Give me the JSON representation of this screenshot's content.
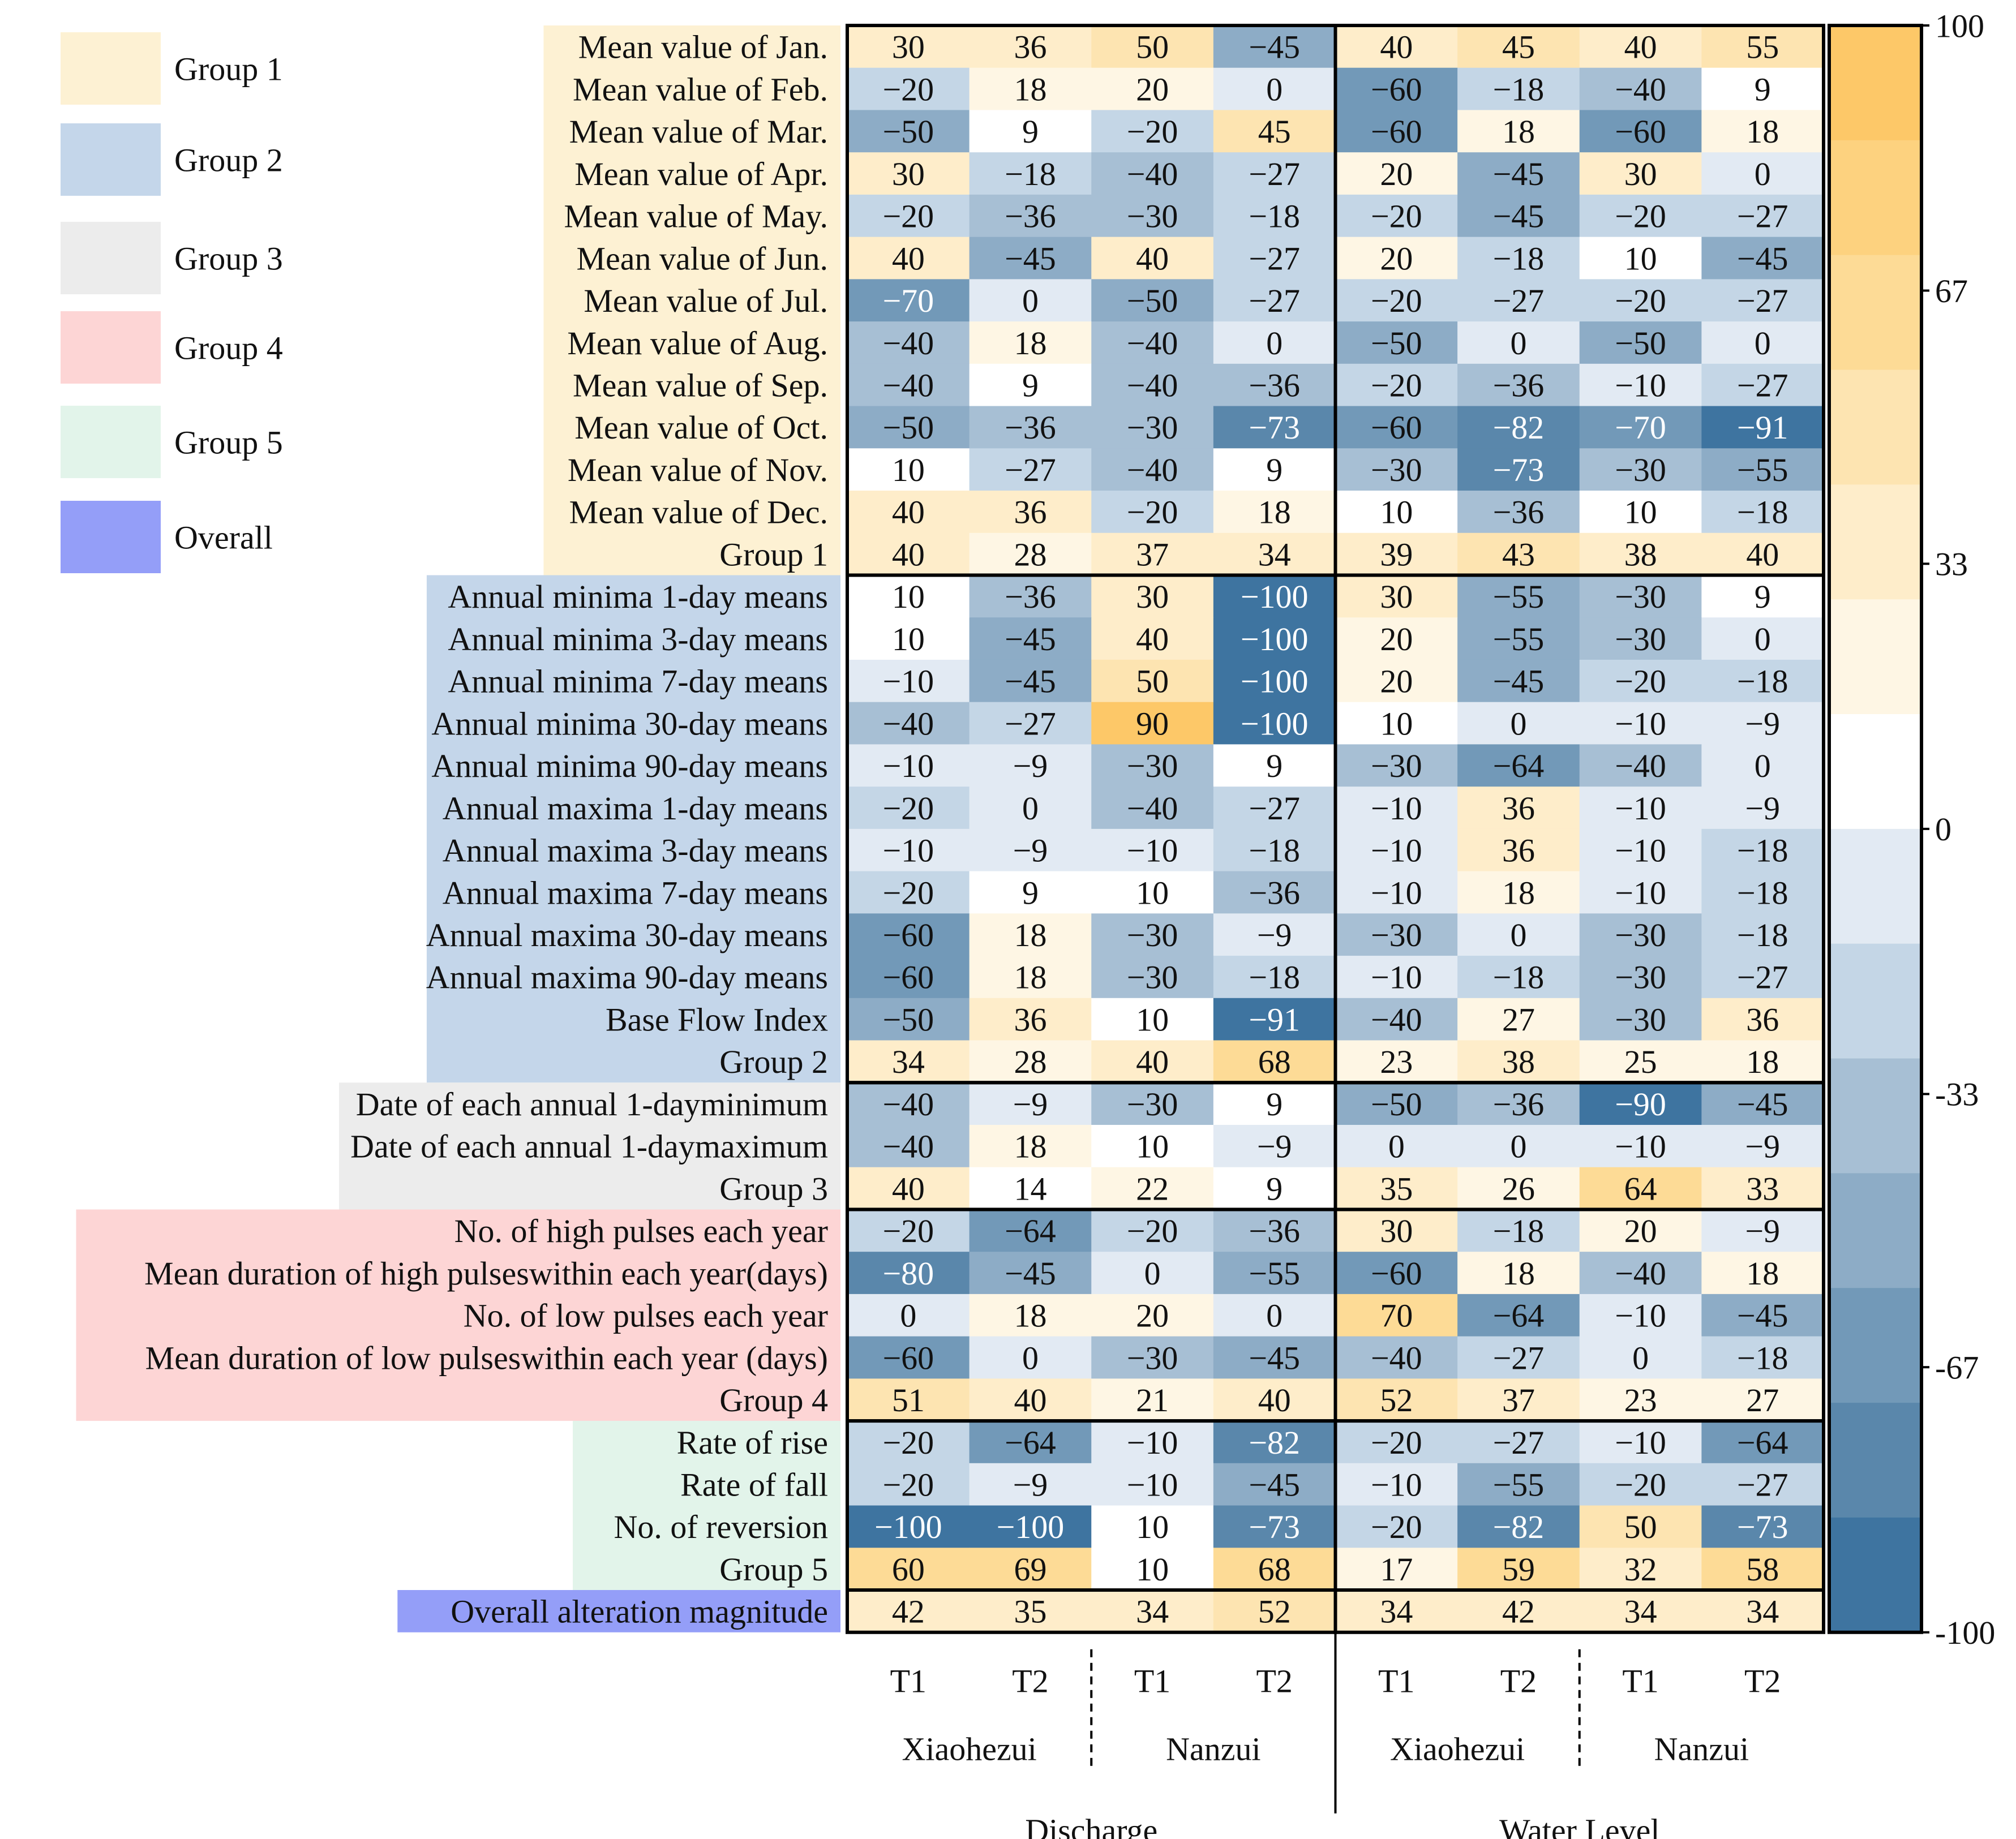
{
  "chart_data": {
    "type": "heatmap",
    "columns": [
      {
        "variable": "Discharge",
        "station": "Xiaohezui",
        "period": "T1"
      },
      {
        "variable": "Discharge",
        "station": "Xiaohezui",
        "period": "T2"
      },
      {
        "variable": "Discharge",
        "station": "Nanzui",
        "period": "T1"
      },
      {
        "variable": "Discharge",
        "station": "Nanzui",
        "period": "T2"
      },
      {
        "variable": "Water Level",
        "station": "Xiaohezui",
        "period": "T1"
      },
      {
        "variable": "Water Level",
        "station": "Xiaohezui",
        "period": "T2"
      },
      {
        "variable": "Water Level",
        "station": "Nanzui",
        "period": "T1"
      },
      {
        "variable": "Water Level",
        "station": "Nanzui",
        "period": "T2"
      }
    ],
    "period_labels": [
      "T1",
      "T2",
      "T1",
      "T2",
      "T1",
      "T2",
      "T1",
      "T2"
    ],
    "station_labels": [
      "Xiaohezui",
      "Nanzui",
      "Xiaohezui",
      "Nanzui"
    ],
    "variable_labels": [
      "Discharge",
      "Water Level"
    ],
    "groups": [
      {
        "name": "Group 1",
        "color": "#fdf1d3",
        "rows": [
          {
            "label": "Mean value of Jan.",
            "values": [
              30,
              36,
              50,
              -45,
              40,
              45,
              40,
              55
            ]
          },
          {
            "label": "Mean value of Feb.",
            "values": [
              -20,
              18,
              20,
              0,
              -60,
              -18,
              -40,
              9
            ]
          },
          {
            "label": "Mean value of Mar.",
            "values": [
              -50,
              9,
              -20,
              45,
              -60,
              18,
              -60,
              18
            ]
          },
          {
            "label": "Mean value of Apr.",
            "values": [
              30,
              -18,
              -40,
              -27,
              20,
              -45,
              30,
              0
            ]
          },
          {
            "label": "Mean value of May.",
            "values": [
              -20,
              -36,
              -30,
              -18,
              -20,
              -45,
              -20,
              -27
            ]
          },
          {
            "label": "Mean value of Jun.",
            "values": [
              40,
              -45,
              40,
              -27,
              20,
              -18,
              10,
              -45
            ]
          },
          {
            "label": "Mean value of Jul.",
            "values": [
              -70,
              0,
              -50,
              -27,
              -20,
              -27,
              -20,
              -27
            ]
          },
          {
            "label": "Mean value of Aug.",
            "values": [
              -40,
              18,
              -40,
              0,
              -50,
              0,
              -50,
              0
            ]
          },
          {
            "label": "Mean value of Sep.",
            "values": [
              -40,
              9,
              -40,
              -36,
              -20,
              -36,
              -10,
              -27
            ]
          },
          {
            "label": "Mean value of Oct.",
            "values": [
              -50,
              -36,
              -30,
              -73,
              -60,
              -82,
              -70,
              -91
            ]
          },
          {
            "label": "Mean value of Nov.",
            "values": [
              10,
              -27,
              -40,
              9,
              -30,
              -73,
              -30,
              -55
            ]
          },
          {
            "label": "Mean value of Dec.",
            "values": [
              40,
              36,
              -20,
              18,
              10,
              -36,
              10,
              -18
            ]
          },
          {
            "label": "Group 1",
            "values": [
              40,
              28,
              37,
              34,
              39,
              43,
              38,
              40
            ]
          }
        ]
      },
      {
        "name": "Group 2",
        "color": "#c4d6ea",
        "rows": [
          {
            "label": "Annual minima 1-day means",
            "values": [
              10,
              -36,
              30,
              -100,
              30,
              -55,
              -30,
              9
            ]
          },
          {
            "label": "Annual minima 3-day means",
            "values": [
              10,
              -45,
              40,
              -100,
              20,
              -55,
              -30,
              0
            ]
          },
          {
            "label": "Annual minima 7-day means",
            "values": [
              -10,
              -45,
              50,
              -100,
              20,
              -45,
              -20,
              -18
            ]
          },
          {
            "label": "Annual minima 30-day means",
            "values": [
              -40,
              -27,
              90,
              -100,
              10,
              0,
              -10,
              -9
            ]
          },
          {
            "label": "Annual minima 90-day means",
            "values": [
              -10,
              -9,
              -30,
              9,
              -30,
              -64,
              -40,
              0
            ]
          },
          {
            "label": "Annual maxima 1-day means",
            "values": [
              -20,
              0,
              -40,
              -27,
              -10,
              36,
              -10,
              -9
            ]
          },
          {
            "label": "Annual maxima 3-day means",
            "values": [
              -10,
              -9,
              -10,
              -18,
              -10,
              36,
              -10,
              -18
            ]
          },
          {
            "label": "Annual maxima 7-day means",
            "values": [
              -20,
              9,
              10,
              -36,
              -10,
              18,
              -10,
              -18
            ]
          },
          {
            "label": "Annual maxima 30-day means",
            "values": [
              -60,
              18,
              -30,
              -9,
              -30,
              0,
              -30,
              -18
            ]
          },
          {
            "label": "Annual maxima 90-day means",
            "values": [
              -60,
              18,
              -30,
              -18,
              -10,
              -18,
              -30,
              -27
            ]
          },
          {
            "label": "Base Flow Index",
            "values": [
              -50,
              36,
              10,
              -91,
              -40,
              27,
              -30,
              36
            ]
          },
          {
            "label": "Group 2",
            "values": [
              34,
              28,
              40,
              68,
              23,
              38,
              25,
              18
            ]
          }
        ]
      },
      {
        "name": "Group 3",
        "color": "#ececec",
        "rows": [
          {
            "label": "Date of each annual 1-dayminimum",
            "values": [
              -40,
              -9,
              -30,
              9,
              -50,
              -36,
              -90,
              -45
            ]
          },
          {
            "label": "Date of each annual 1-daymaximum",
            "values": [
              -40,
              18,
              10,
              -9,
              0,
              0,
              -10,
              -9
            ]
          },
          {
            "label": "Group 3",
            "values": [
              40,
              14,
              22,
              9,
              35,
              26,
              64,
              33
            ]
          }
        ]
      },
      {
        "name": "Group 4",
        "color": "#fdd5d5",
        "rows": [
          {
            "label": "No. of high pulses each year",
            "values": [
              -20,
              -64,
              -20,
              -36,
              30,
              -18,
              20,
              -9
            ]
          },
          {
            "label": "Mean duration of high pulseswithin each year(days)",
            "values": [
              -80,
              -45,
              0,
              -55,
              -60,
              18,
              -40,
              18
            ]
          },
          {
            "label": "No. of low pulses each year",
            "values": [
              0,
              18,
              20,
              0,
              70,
              -64,
              -10,
              -45
            ]
          },
          {
            "label": "Mean duration of low pulseswithin each year (days)",
            "values": [
              -60,
              0,
              -30,
              -45,
              -40,
              -27,
              0,
              -18
            ]
          },
          {
            "label": "Group 4",
            "values": [
              51,
              40,
              21,
              40,
              52,
              37,
              23,
              27
            ]
          }
        ]
      },
      {
        "name": "Group 5",
        "color": "#e2f4ea",
        "rows": [
          {
            "label": "Rate of rise",
            "values": [
              -20,
              -64,
              -10,
              -82,
              -20,
              -27,
              -10,
              -64
            ]
          },
          {
            "label": "Rate of fall",
            "values": [
              -20,
              -9,
              -10,
              -45,
              -10,
              -55,
              -20,
              -27
            ]
          },
          {
            "label": "No. of reversion",
            "values": [
              -100,
              -100,
              10,
              -73,
              -20,
              -82,
              50,
              -73
            ]
          },
          {
            "label": "Group 5",
            "values": [
              60,
              69,
              10,
              68,
              17,
              59,
              32,
              58
            ]
          }
        ]
      },
      {
        "name": "Overall",
        "color": "#949ef8",
        "rows": [
          {
            "label": "Overall alteration magnitude",
            "values": [
              42,
              35,
              34,
              52,
              34,
              42,
              34,
              34
            ]
          }
        ]
      }
    ],
    "legend": [
      {
        "label": "Group 1",
        "color": "#fdf1d3"
      },
      {
        "label": "Group 2",
        "color": "#c4d6ea"
      },
      {
        "label": "Group 3",
        "color": "#ececec"
      },
      {
        "label": "Group 4",
        "color": "#fdd5d5"
      },
      {
        "label": "Group 5",
        "color": "#e2f4ea"
      },
      {
        "label": "Overall",
        "color": "#949ef8"
      }
    ],
    "colorbar": {
      "range": [
        -100,
        100
      ],
      "ticks": [
        100,
        67,
        33,
        0,
        -33,
        -67,
        -100
      ],
      "tick_labels": [
        "100",
        "67",
        "33",
        "0",
        "-33",
        "-67",
        "-100"
      ],
      "colors_top_to_bottom": [
        "#fdc868",
        "#fdd27f",
        "#fddb96",
        "#fde4b1",
        "#feedca",
        "#fef6e4",
        "#ffffff",
        "#e2eaf3",
        "#c4d6e6",
        "#a7bfd4",
        "#8dacc6",
        "#7299b8",
        "#5a87ab",
        "#3e74a0"
      ]
    }
  }
}
